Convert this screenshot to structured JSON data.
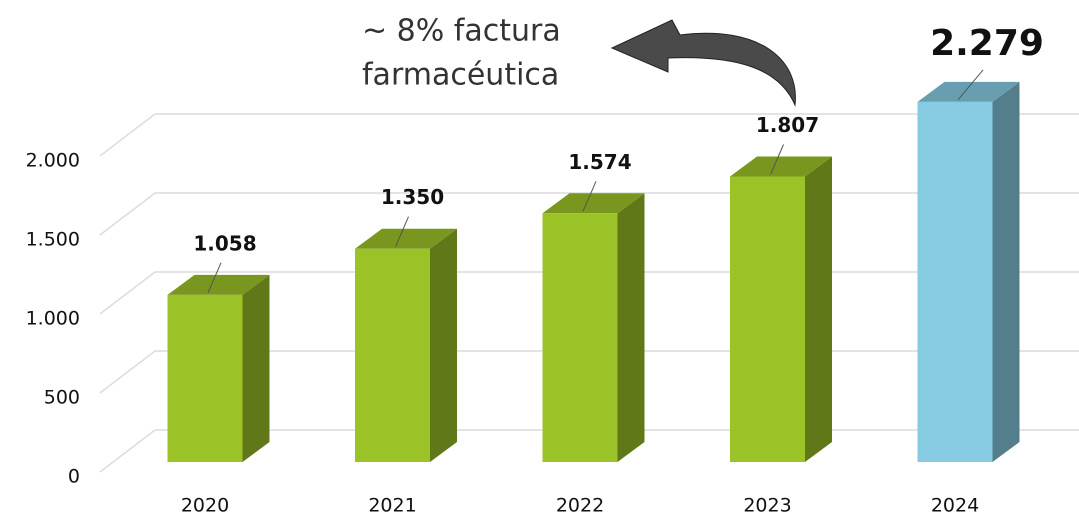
{
  "chart_data": {
    "type": "bar3d",
    "annotation": [
      "~ 8% factura",
      "farmacéutica"
    ],
    "categories": [
      "2020",
      "2021",
      "2022",
      "2023",
      "2024"
    ],
    "values": [
      1058,
      1350,
      1574,
      1807,
      2279
    ],
    "value_labels": [
      "1.058",
      "1.350",
      "1.574",
      "1.807",
      "2.279"
    ],
    "colors": [
      "#9bc227",
      "#9bc227",
      "#9bc227",
      "#9bc227",
      "#87cbe2"
    ],
    "ylim": [
      0,
      2500
    ],
    "yticks": [
      0,
      500,
      {
        "value": 1000,
        "label": "1.000"
      },
      {
        "value": 1500,
        "label": "1.500"
      },
      {
        "value": 2000,
        "label": "2.000"
      }
    ],
    "grid": true
  }
}
